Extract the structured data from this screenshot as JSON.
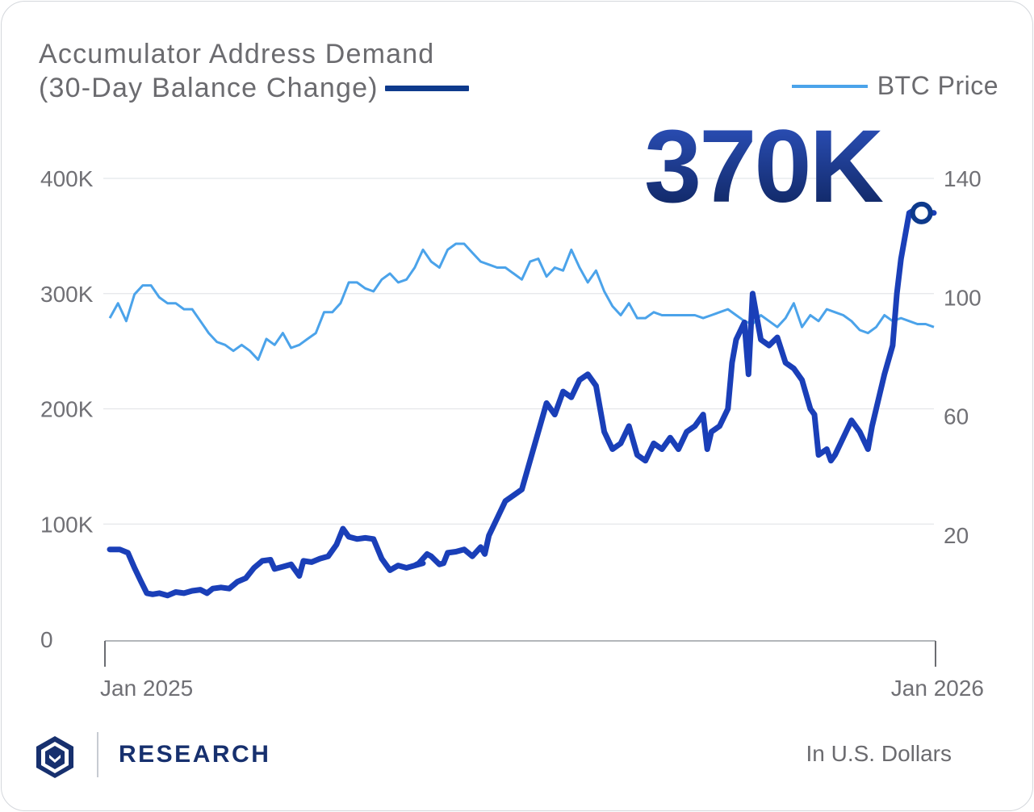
{
  "chart_data": {
    "type": "line",
    "title": "Accumulator Address Demand",
    "title_line2": "(30-Day Balance Change)",
    "legend": [
      "Accumulator Address Demand (30-Day Balance Change)",
      "BTC Price"
    ],
    "legend_btc": "BTC Price",
    "callout": "370K",
    "units_note": "In U.S. Dollars",
    "x_labels": [
      "Jan 2025",
      "Jan 2026"
    ],
    "left_axis": {
      "ticks": [
        0,
        100000,
        200000,
        300000,
        400000
      ],
      "tick_labels": [
        "0",
        "100K",
        "200K",
        "300K",
        "400K"
      ],
      "range": [
        0,
        400000
      ]
    },
    "right_axis": {
      "ticks": [
        20,
        60,
        100,
        140
      ],
      "tick_labels": [
        "20",
        "60",
        "100",
        "140"
      ],
      "range": [
        -15,
        140
      ]
    },
    "series": [
      {
        "name": "Accumulator Address Demand (30-Day Balance Change)",
        "axis": "left",
        "color": "#1a3fb8",
        "x": [
          0.0,
          0.012,
          0.022,
          0.03,
          0.038,
          0.045,
          0.052,
          0.06,
          0.07,
          0.08,
          0.09,
          0.1,
          0.11,
          0.118,
          0.125,
          0.135,
          0.145,
          0.155,
          0.165,
          0.175,
          0.185,
          0.195,
          0.2,
          0.21,
          0.22,
          0.23,
          0.235,
          0.245,
          0.255,
          0.265,
          0.275,
          0.283,
          0.29,
          0.3,
          0.31,
          0.32,
          0.33,
          0.34,
          0.35,
          0.36,
          0.37,
          0.38,
          0.37,
          0.375,
          0.385,
          0.39,
          0.4,
          0.405,
          0.41,
          0.42,
          0.43,
          0.44,
          0.45,
          0.455,
          0.46,
          0.47,
          0.48,
          0.49,
          0.5,
          0.51,
          0.52,
          0.53,
          0.54,
          0.55,
          0.56,
          0.57,
          0.58,
          0.59,
          0.6,
          0.61,
          0.62,
          0.63,
          0.64,
          0.65,
          0.66,
          0.67,
          0.68,
          0.69,
          0.7,
          0.71,
          0.72,
          0.725,
          0.73,
          0.74,
          0.75,
          0.755,
          0.76,
          0.77,
          0.775,
          0.78,
          0.79,
          0.8,
          0.81,
          0.82,
          0.83,
          0.84,
          0.85,
          0.855,
          0.86,
          0.87,
          0.875,
          0.88,
          0.89,
          0.9,
          0.905,
          0.91,
          0.92,
          0.925,
          0.93,
          0.94,
          0.95,
          0.955,
          0.96,
          0.97,
          0.975,
          0.985,
          0.99,
          0.995,
          1.0
        ],
        "values": [
          78000,
          78000,
          75000,
          62000,
          50000,
          40000,
          39000,
          40000,
          38000,
          41000,
          40000,
          42000,
          43000,
          40000,
          44000,
          45000,
          44000,
          50000,
          53000,
          62000,
          68000,
          69000,
          61000,
          63000,
          65000,
          55000,
          68000,
          67000,
          70000,
          72000,
          82000,
          96000,
          89000,
          87000,
          88000,
          87000,
          70000,
          60000,
          64000,
          62000,
          64000,
          66000,
          64000,
          66000,
          74000,
          72000,
          65000,
          66000,
          75000,
          76000,
          78000,
          72000,
          80000,
          74000,
          90000,
          105000,
          120000,
          125000,
          130000,
          155000,
          180000,
          205000,
          195000,
          215000,
          210000,
          225000,
          230000,
          220000,
          180000,
          165000,
          170000,
          185000,
          160000,
          155000,
          170000,
          165000,
          175000,
          165000,
          180000,
          185000,
          195000,
          165000,
          180000,
          185000,
          200000,
          240000,
          260000,
          275000,
          230000,
          300000,
          260000,
          255000,
          262000,
          240000,
          235000,
          225000,
          200000,
          195000,
          160000,
          165000,
          155000,
          160000,
          175000,
          190000,
          185000,
          180000,
          165000,
          185000,
          200000,
          230000,
          255000,
          300000,
          330000,
          370000,
          372000,
          371000,
          371000,
          370000,
          370000
        ],
        "marker_x": 0.985,
        "marker_value": 370000
      },
      {
        "name": "BTC Price",
        "axis": "right",
        "color": "#4ba3ea",
        "x": [
          0.0,
          0.01,
          0.02,
          0.03,
          0.04,
          0.05,
          0.06,
          0.07,
          0.08,
          0.09,
          0.1,
          0.11,
          0.12,
          0.13,
          0.14,
          0.15,
          0.16,
          0.17,
          0.18,
          0.19,
          0.2,
          0.21,
          0.22,
          0.23,
          0.24,
          0.25,
          0.26,
          0.27,
          0.28,
          0.29,
          0.3,
          0.31,
          0.32,
          0.33,
          0.34,
          0.35,
          0.36,
          0.37,
          0.38,
          0.39,
          0.4,
          0.41,
          0.42,
          0.43,
          0.44,
          0.45,
          0.46,
          0.47,
          0.48,
          0.49,
          0.5,
          0.51,
          0.52,
          0.53,
          0.54,
          0.55,
          0.56,
          0.57,
          0.58,
          0.59,
          0.6,
          0.61,
          0.62,
          0.63,
          0.64,
          0.65,
          0.66,
          0.67,
          0.68,
          0.69,
          0.7,
          0.71,
          0.72,
          0.73,
          0.74,
          0.75,
          0.76,
          0.77,
          0.78,
          0.79,
          0.8,
          0.81,
          0.82,
          0.83,
          0.84,
          0.85,
          0.86,
          0.87,
          0.88,
          0.89,
          0.9,
          0.91,
          0.92,
          0.93,
          0.94,
          0.95,
          0.96,
          0.97,
          0.98,
          0.99,
          1.0
        ],
        "values": [
          93,
          98,
          92,
          101,
          104,
          104,
          100,
          98,
          98,
          96,
          96,
          92,
          88,
          85,
          84,
          82,
          84,
          82,
          79,
          86,
          84,
          88,
          83,
          84,
          86,
          88,
          95,
          95,
          98,
          105,
          105,
          103,
          102,
          106,
          108,
          105,
          106,
          110,
          116,
          112,
          110,
          116,
          118,
          118,
          115,
          112,
          111,
          110,
          110,
          108,
          106,
          112,
          113,
          107,
          110,
          109,
          116,
          110,
          105,
          109,
          102,
          97,
          94,
          98,
          93,
          93,
          95,
          94,
          94,
          94,
          94,
          94,
          93,
          94,
          95,
          96,
          94,
          92,
          91,
          94,
          92,
          90,
          93,
          98,
          90,
          94,
          92,
          96,
          95,
          94,
          92,
          89,
          88,
          90,
          94,
          92,
          93,
          92,
          91,
          91,
          90
        ]
      }
    ]
  },
  "footer": {
    "brand": "RESEARCH",
    "units": "In U.S. Dollars"
  }
}
